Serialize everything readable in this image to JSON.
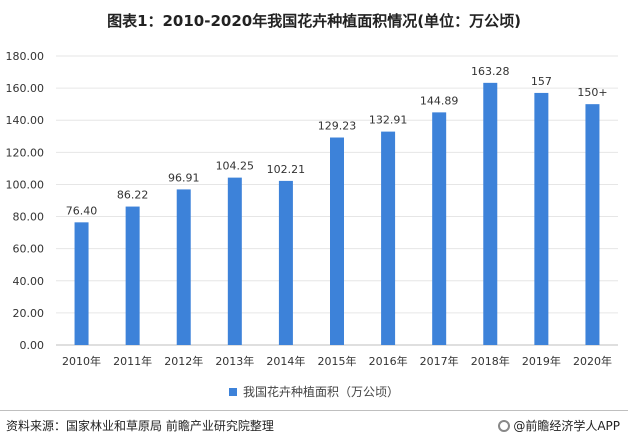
{
  "title": "图表1：2010-2020年我国花卉种植面积情况(单位：万公顷)",
  "chart_data": {
    "type": "bar",
    "categories": [
      "2010年",
      "2011年",
      "2012年",
      "2013年",
      "2014年",
      "2015年",
      "2016年",
      "2017年",
      "2018年",
      "2019年",
      "2020年"
    ],
    "series": [
      {
        "name": "我国花卉种植面积（万公顷）",
        "values": [
          76.4,
          86.22,
          96.91,
          104.25,
          102.21,
          129.23,
          132.91,
          144.89,
          163.28,
          157,
          150
        ],
        "data_labels": [
          "76.40",
          "86.22",
          "96.91",
          "104.25",
          "102.21",
          "129.23",
          "132.91",
          "144.89",
          "163.28",
          "157",
          "150+"
        ]
      }
    ],
    "ylim": [
      0,
      180
    ],
    "yticks": [
      "0.00",
      "20.00",
      "40.00",
      "60.00",
      "80.00",
      "100.00",
      "120.00",
      "140.00",
      "160.00",
      "180.00"
    ],
    "grid": true,
    "legend_position": "bottom",
    "bar_color": "#3d82d9"
  },
  "footer": {
    "source": "资料来源：国家林业和草原局 前瞻产业研究院整理",
    "brand": "@前瞻经济学人APP"
  }
}
